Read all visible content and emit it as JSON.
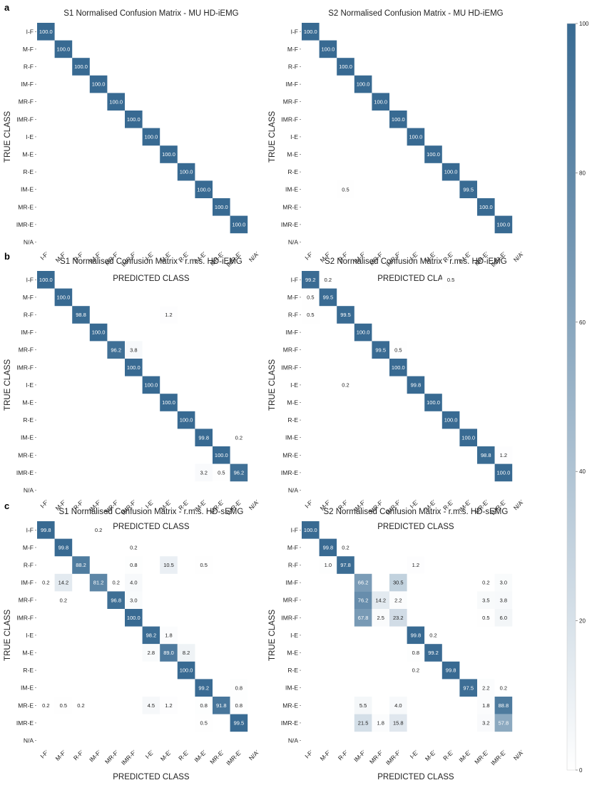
{
  "chart_data": {
    "type": "heatmap",
    "panel_letters": [
      "a",
      "b",
      "c"
    ],
    "classes": [
      "I-F",
      "M-F",
      "R-F",
      "IM-F",
      "MR-F",
      "IMR-F",
      "I-E",
      "M-E",
      "R-E",
      "IM-E",
      "MR-E",
      "IMR-E",
      "N/A"
    ],
    "xlabel": "PREDICTED CLASS",
    "ylabel": "TRUE CLASS",
    "colorbar": {
      "range": [
        0,
        100
      ],
      "ticks": [
        0,
        20,
        40,
        60,
        80,
        100
      ],
      "colors": {
        "low": "#ffffff",
        "high": "#386a92"
      }
    },
    "matrices": [
      {
        "panel": "a",
        "title": "S1 Normalised Confusion Matrix - MU HD-iEMG",
        "cells": [
          [
            0,
            0,
            100.0
          ],
          [
            1,
            1,
            100.0
          ],
          [
            2,
            2,
            100.0
          ],
          [
            3,
            3,
            100.0
          ],
          [
            4,
            4,
            100.0
          ],
          [
            5,
            5,
            100.0
          ],
          [
            6,
            6,
            100.0
          ],
          [
            7,
            7,
            100.0
          ],
          [
            8,
            8,
            100.0
          ],
          [
            9,
            9,
            100.0
          ],
          [
            10,
            10,
            100.0
          ],
          [
            11,
            11,
            100.0
          ]
        ]
      },
      {
        "panel": "a",
        "title": "S2 Normalised Confusion Matrix - MU HD-iEMG",
        "cells": [
          [
            0,
            0,
            100.0
          ],
          [
            1,
            1,
            100.0
          ],
          [
            2,
            2,
            100.0
          ],
          [
            3,
            3,
            100.0
          ],
          [
            4,
            4,
            100.0
          ],
          [
            5,
            5,
            100.0
          ],
          [
            6,
            6,
            100.0
          ],
          [
            7,
            7,
            100.0
          ],
          [
            8,
            8,
            100.0
          ],
          [
            9,
            2,
            0.5
          ],
          [
            9,
            9,
            99.5
          ],
          [
            10,
            10,
            100.0
          ],
          [
            11,
            11,
            100.0
          ]
        ]
      },
      {
        "panel": "b",
        "title": "S1 Normalised Confusion Matrix - r.m.s. HD-iEMG",
        "cells": [
          [
            0,
            0,
            100.0
          ],
          [
            1,
            1,
            100.0
          ],
          [
            2,
            2,
            98.8
          ],
          [
            2,
            7,
            1.2
          ],
          [
            3,
            3,
            100.0
          ],
          [
            4,
            4,
            96.2
          ],
          [
            4,
            5,
            3.8
          ],
          [
            5,
            5,
            100.0
          ],
          [
            6,
            6,
            100.0
          ],
          [
            7,
            7,
            100.0
          ],
          [
            8,
            8,
            100.0
          ],
          [
            9,
            9,
            99.8
          ],
          [
            9,
            11,
            0.2
          ],
          [
            10,
            10,
            100.0
          ],
          [
            11,
            9,
            3.2
          ],
          [
            11,
            10,
            0.5
          ],
          [
            11,
            11,
            96.2
          ]
        ]
      },
      {
        "panel": "b",
        "title": "S2 Normalised Confusion Matrix - r.m.s. HD-iEMG",
        "cells": [
          [
            0,
            0,
            99.2
          ],
          [
            0,
            1,
            0.2
          ],
          [
            0,
            8,
            0.5
          ],
          [
            1,
            0,
            0.5
          ],
          [
            1,
            1,
            99.5
          ],
          [
            2,
            0,
            0.5
          ],
          [
            2,
            2,
            99.5
          ],
          [
            3,
            3,
            100.0
          ],
          [
            4,
            4,
            99.5
          ],
          [
            4,
            5,
            0.5
          ],
          [
            5,
            5,
            100.0
          ],
          [
            6,
            2,
            0.2
          ],
          [
            6,
            6,
            99.8
          ],
          [
            7,
            7,
            100.0
          ],
          [
            8,
            8,
            100.0
          ],
          [
            9,
            9,
            100.0
          ],
          [
            10,
            10,
            98.8
          ],
          [
            10,
            11,
            1.2
          ],
          [
            11,
            11,
            100.0
          ]
        ]
      },
      {
        "panel": "c",
        "title": "S1 Normalised Confusion Matrix - r.m.s. HD-sEMG",
        "cells": [
          [
            0,
            0,
            99.8
          ],
          [
            0,
            3,
            0.2
          ],
          [
            1,
            1,
            99.8
          ],
          [
            1,
            5,
            0.2
          ],
          [
            2,
            2,
            88.2
          ],
          [
            2,
            5,
            0.8
          ],
          [
            2,
            7,
            10.5
          ],
          [
            2,
            9,
            0.5
          ],
          [
            3,
            0,
            0.2
          ],
          [
            3,
            1,
            14.2
          ],
          [
            3,
            3,
            81.2
          ],
          [
            3,
            4,
            0.2
          ],
          [
            3,
            5,
            4.0
          ],
          [
            4,
            1,
            0.2
          ],
          [
            4,
            4,
            96.8
          ],
          [
            4,
            5,
            3.0
          ],
          [
            5,
            5,
            100.0
          ],
          [
            6,
            6,
            98.2
          ],
          [
            6,
            7,
            1.8
          ],
          [
            7,
            6,
            2.8
          ],
          [
            7,
            7,
            89.0
          ],
          [
            7,
            8,
            8.2
          ],
          [
            8,
            8,
            100.0
          ],
          [
            9,
            9,
            99.2
          ],
          [
            9,
            11,
            0.8
          ],
          [
            10,
            0,
            0.2
          ],
          [
            10,
            1,
            0.5
          ],
          [
            10,
            2,
            0.2
          ],
          [
            10,
            6,
            4.5
          ],
          [
            10,
            7,
            1.2
          ],
          [
            10,
            9,
            0.8
          ],
          [
            10,
            10,
            91.8
          ],
          [
            10,
            11,
            0.8
          ],
          [
            11,
            9,
            0.5
          ],
          [
            11,
            11,
            99.5
          ]
        ]
      },
      {
        "panel": "c",
        "title": "S2 Normalised Confusion Matrix - r.m.s. HD-sEMG",
        "cells": [
          [
            0,
            0,
            100.0
          ],
          [
            1,
            1,
            99.8
          ],
          [
            1,
            2,
            0.2
          ],
          [
            2,
            1,
            1.0
          ],
          [
            2,
            2,
            97.8
          ],
          [
            2,
            6,
            1.2
          ],
          [
            3,
            3,
            66.2
          ],
          [
            3,
            5,
            30.5
          ],
          [
            3,
            10,
            0.2
          ],
          [
            3,
            11,
            3.0
          ],
          [
            4,
            3,
            76.2
          ],
          [
            4,
            4,
            14.2
          ],
          [
            4,
            5,
            2.2
          ],
          [
            4,
            10,
            3.5
          ],
          [
            4,
            11,
            3.8
          ],
          [
            5,
            3,
            67.8
          ],
          [
            5,
            4,
            2.5
          ],
          [
            5,
            5,
            23.2
          ],
          [
            5,
            10,
            0.5
          ],
          [
            5,
            11,
            6.0
          ],
          [
            6,
            6,
            99.8
          ],
          [
            6,
            7,
            0.2
          ],
          [
            7,
            6,
            0.8
          ],
          [
            7,
            7,
            99.2
          ],
          [
            8,
            6,
            0.2
          ],
          [
            8,
            8,
            99.8
          ],
          [
            9,
            9,
            97.5
          ],
          [
            9,
            10,
            2.2
          ],
          [
            9,
            11,
            0.2
          ],
          [
            10,
            3,
            5.5
          ],
          [
            10,
            5,
            4.0
          ],
          [
            10,
            10,
            1.8
          ],
          [
            10,
            11,
            88.8
          ],
          [
            11,
            3,
            21.5
          ],
          [
            11,
            4,
            1.8
          ],
          [
            11,
            5,
            15.8
          ],
          [
            11,
            10,
            3.2
          ],
          [
            11,
            11,
            57.8
          ]
        ]
      }
    ]
  }
}
